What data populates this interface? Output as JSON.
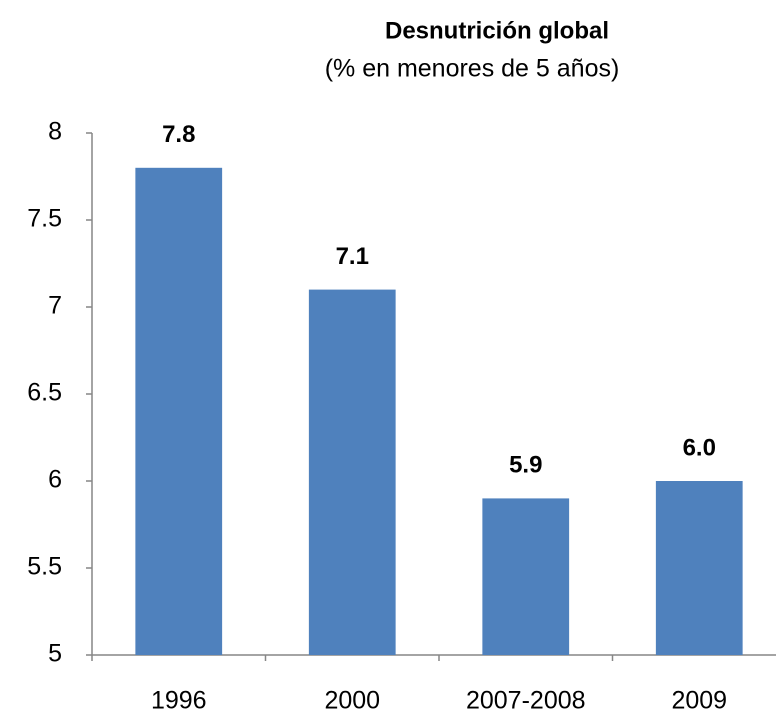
{
  "chart_data": {
    "type": "bar",
    "title": "Desnutrición global",
    "subtitle": "(% en menores de 5 años)",
    "categories": [
      "1996",
      "2000",
      "2007-2008",
      "2009"
    ],
    "values": [
      7.8,
      7.1,
      5.9,
      6.0
    ],
    "value_labels": [
      "7.8",
      "7.1",
      "5.9",
      "6.0"
    ],
    "color": "#4f81bd",
    "ylim": [
      5,
      8
    ],
    "yticks": [
      5,
      5.5,
      6,
      6.5,
      7,
      7.5,
      8
    ],
    "grid": false
  }
}
